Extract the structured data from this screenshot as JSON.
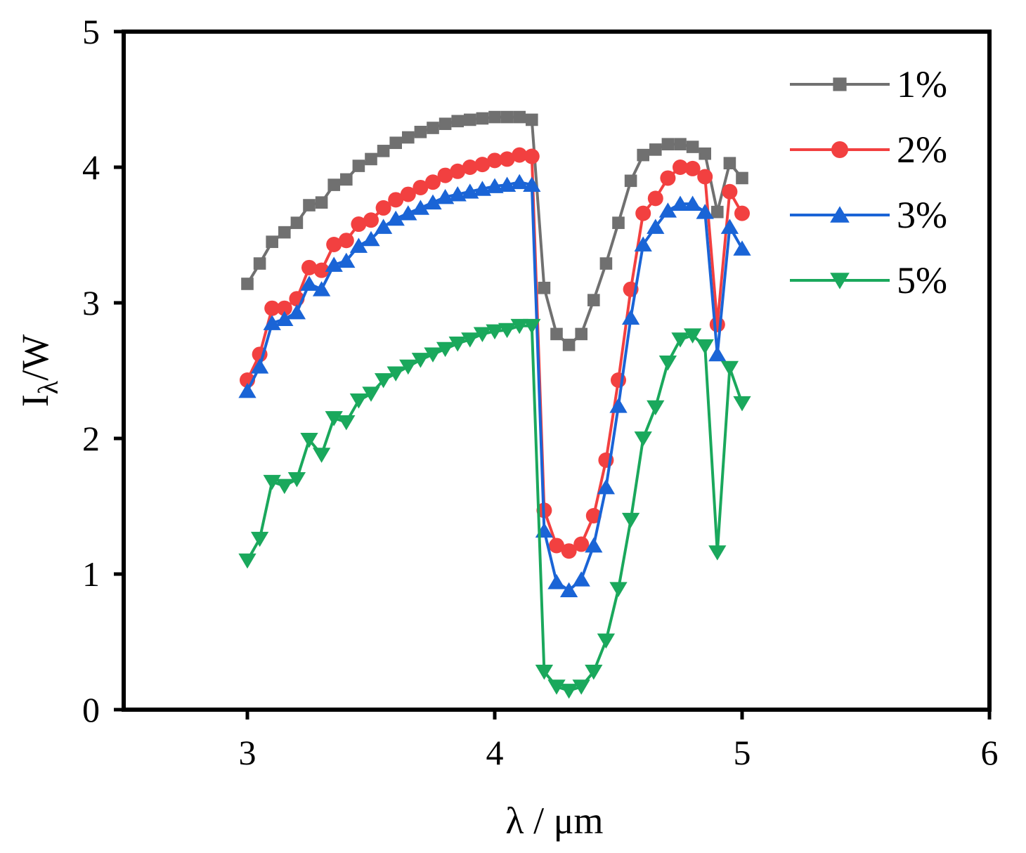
{
  "chart_data": {
    "type": "line",
    "title": "",
    "xlabel": "λ / μm",
    "ylabel": "Iλ/W",
    "ylabel_main": "I",
    "ylabel_sub": "λ",
    "ylabel_rest": "/W",
    "xlim": [
      2.5,
      6
    ],
    "ylim": [
      0,
      5
    ],
    "xticks": [
      3,
      4,
      5,
      6
    ],
    "yticks": [
      0,
      1,
      2,
      3,
      4,
      5
    ],
    "xtick_labels": [
      "3",
      "4",
      "5",
      "6"
    ],
    "ytick_labels": [
      "0",
      "1",
      "2",
      "3",
      "4",
      "5"
    ],
    "grid": false,
    "legend_position": "top-right",
    "x": [
      3.0,
      3.05,
      3.1,
      3.15,
      3.2,
      3.25,
      3.3,
      3.35,
      3.4,
      3.45,
      3.5,
      3.55,
      3.6,
      3.65,
      3.7,
      3.75,
      3.8,
      3.85,
      3.9,
      3.95,
      4.0,
      4.05,
      4.1,
      4.15,
      4.2,
      4.25,
      4.3,
      4.35,
      4.4,
      4.45,
      4.5,
      4.55,
      4.6,
      4.65,
      4.7,
      4.75,
      4.8,
      4.85,
      4.9,
      4.95,
      5.0
    ],
    "series": [
      {
        "name": "1%",
        "label": "1%",
        "color": "#707070",
        "marker": "square",
        "values": [
          3.14,
          3.29,
          3.45,
          3.52,
          3.59,
          3.72,
          3.74,
          3.87,
          3.91,
          4.01,
          4.06,
          4.12,
          4.18,
          4.22,
          4.26,
          4.29,
          4.32,
          4.34,
          4.35,
          4.36,
          4.37,
          4.37,
          4.37,
          4.35,
          3.11,
          2.77,
          2.69,
          2.77,
          3.02,
          3.29,
          3.59,
          3.9,
          4.09,
          4.13,
          4.17,
          4.17,
          4.15,
          4.1,
          3.67,
          4.03,
          3.92
        ]
      },
      {
        "name": "2%",
        "label": "2%",
        "color": "#f24040",
        "marker": "circle",
        "values": [
          2.43,
          2.62,
          2.96,
          2.96,
          3.03,
          3.26,
          3.24,
          3.43,
          3.46,
          3.58,
          3.61,
          3.7,
          3.76,
          3.8,
          3.85,
          3.89,
          3.94,
          3.97,
          4.0,
          4.02,
          4.05,
          4.06,
          4.09,
          4.08,
          1.47,
          1.21,
          1.17,
          1.22,
          1.43,
          1.84,
          2.43,
          3.1,
          3.66,
          3.77,
          3.92,
          4.0,
          3.99,
          3.93,
          2.84,
          3.82,
          3.66
        ]
      },
      {
        "name": "3%",
        "label": "3%",
        "color": "#1a64d6",
        "marker": "triangle-up",
        "values": [
          2.35,
          2.53,
          2.85,
          2.88,
          2.93,
          3.14,
          3.1,
          3.28,
          3.31,
          3.42,
          3.47,
          3.56,
          3.62,
          3.66,
          3.7,
          3.74,
          3.78,
          3.8,
          3.82,
          3.84,
          3.86,
          3.87,
          3.89,
          3.87,
          1.32,
          0.94,
          0.88,
          0.96,
          1.21,
          1.64,
          2.24,
          2.89,
          3.43,
          3.56,
          3.68,
          3.73,
          3.73,
          3.67,
          2.62,
          3.56,
          3.4
        ]
      },
      {
        "name": "5%",
        "label": "5%",
        "color": "#1aa85c",
        "marker": "triangle-down",
        "values": [
          1.1,
          1.26,
          1.68,
          1.65,
          1.7,
          1.99,
          1.88,
          2.15,
          2.12,
          2.28,
          2.33,
          2.43,
          2.48,
          2.53,
          2.58,
          2.62,
          2.66,
          2.7,
          2.73,
          2.77,
          2.79,
          2.8,
          2.83,
          2.83,
          0.28,
          0.17,
          0.14,
          0.17,
          0.28,
          0.51,
          0.89,
          1.4,
          2.0,
          2.23,
          2.56,
          2.73,
          2.76,
          2.68,
          1.16,
          2.52,
          2.26
        ]
      }
    ]
  }
}
